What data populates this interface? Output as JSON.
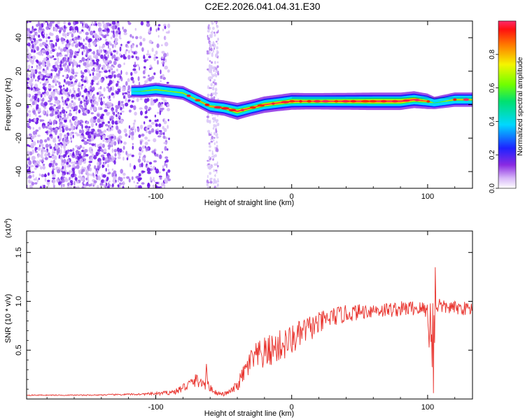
{
  "figure": {
    "title": "C2E2.2026.041.04.31.E30"
  },
  "chart_data": [
    {
      "type": "heatmap",
      "title": "C2E2.2026.041.04.31.E30",
      "xlabel": "Height of straight line (km)",
      "ylabel": "Frequency (Hz)",
      "xlim": [
        -195,
        133
      ],
      "ylim": [
        -50,
        50
      ],
      "xticks": [
        -100,
        0,
        100
      ],
      "yticks": [
        -40,
        -20,
        0,
        20,
        40
      ],
      "colorbar": {
        "label": "Normalized spectral amplitude",
        "range": [
          0.0,
          1.0
        ],
        "ticks": [
          0.0,
          0.2,
          0.4,
          0.6,
          0.8
        ]
      },
      "ridge": {
        "x": [
          -118,
          -110,
          -100,
          -90,
          -80,
          -70,
          -60,
          -50,
          -40,
          -30,
          -20,
          -10,
          0,
          10,
          20,
          40,
          60,
          80,
          90,
          100,
          105,
          120,
          133
        ],
        "y": [
          8,
          8,
          9,
          8,
          7,
          3,
          -1,
          -2,
          -4,
          -2,
          0,
          1,
          2,
          2,
          2,
          2,
          2,
          2,
          3,
          2,
          1,
          3,
          3
        ],
        "amplitude": [
          0.35,
          0.45,
          0.55,
          0.5,
          0.55,
          0.6,
          0.65,
          0.7,
          0.85,
          0.75,
          0.8,
          0.8,
          0.85,
          0.8,
          0.8,
          0.85,
          0.9,
          0.9,
          0.85,
          0.7,
          0.4,
          0.6,
          0.6
        ]
      },
      "noise_region_x": [
        -195,
        -90
      ],
      "noise_stripe_x": [
        -62,
        -54
      ]
    },
    {
      "type": "line",
      "xlabel": "Height of straight line (km)",
      "ylabel": "SNR (10 * v/v)",
      "y_multiplier": "(x10",
      "y_multiplier_exp": "4",
      "y_multiplier_close": ")",
      "xlim": [
        -195,
        133
      ],
      "ylim": [
        0,
        1.72
      ],
      "xticks": [
        -100,
        0,
        100
      ],
      "yticks": [
        0.5,
        1.0,
        1.5
      ],
      "series": [
        {
          "name": "SNR",
          "color": "#e8302a",
          "x": [
            -195,
            -150,
            -110,
            -95,
            -85,
            -80,
            -75,
            -70,
            -65,
            -60,
            -55,
            -50,
            -45,
            -40,
            -35,
            -30,
            -25,
            -20,
            -15,
            -10,
            -5,
            0,
            5,
            10,
            15,
            20,
            25,
            30,
            40,
            50,
            60,
            70,
            80,
            90,
            95,
            100,
            102,
            104,
            106,
            108,
            110,
            120,
            133
          ],
          "y": [
            0.04,
            0.04,
            0.05,
            0.06,
            0.08,
            0.12,
            0.16,
            0.2,
            0.18,
            0.12,
            0.06,
            0.05,
            0.08,
            0.14,
            0.28,
            0.4,
            0.45,
            0.48,
            0.52,
            0.55,
            0.58,
            0.62,
            0.66,
            0.72,
            0.75,
            0.78,
            0.82,
            0.85,
            0.88,
            0.9,
            0.92,
            0.92,
            0.93,
            0.94,
            0.93,
            0.92,
            0.7,
            0.6,
            0.95,
            1.0,
            0.95,
            0.94,
            0.93
          ],
          "noise": [
            0.005,
            0.005,
            0.01,
            0.02,
            0.03,
            0.05,
            0.06,
            0.07,
            0.07,
            0.05,
            0.02,
            0.02,
            0.03,
            0.06,
            0.1,
            0.14,
            0.16,
            0.17,
            0.17,
            0.17,
            0.17,
            0.16,
            0.15,
            0.14,
            0.13,
            0.12,
            0.11,
            0.1,
            0.09,
            0.08,
            0.08,
            0.08,
            0.08,
            0.08,
            0.08,
            0.1,
            0.45,
            0.6,
            0.2,
            0.08,
            0.07,
            0.07,
            0.07
          ]
        }
      ]
    }
  ]
}
